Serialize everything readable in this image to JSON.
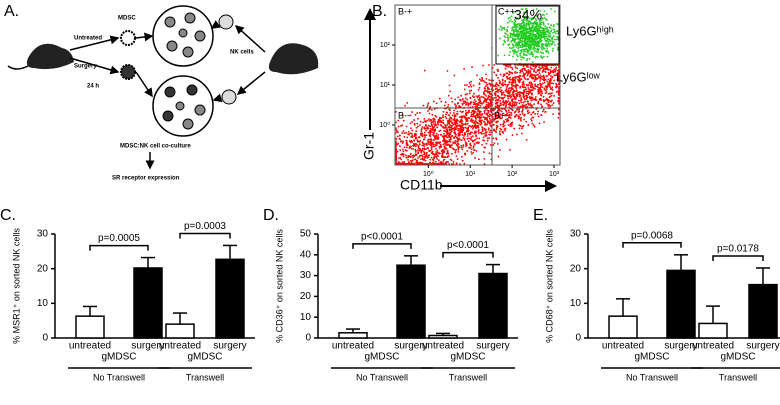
{
  "diagram": {
    "panel_label": "A.",
    "mdsc": "MDSC",
    "untreated": "Untreated",
    "surgery": "Surgery",
    "time": "24 h",
    "nk_cells": "NK cells",
    "coculture": "MDSC:NK cell co-culture",
    "readout": "SR receptor expression"
  },
  "chart_data": [
    {
      "type": "density",
      "panel_label": "B.",
      "xlabel": "CD11b",
      "ylabel": "Gr-1",
      "log": true,
      "xlim": [
        0.16,
        1000
      ],
      "ylim": [
        0.1,
        1000
      ],
      "xticks": [
        {
          "value": 1,
          "label": "10⁰"
        },
        {
          "value": 10,
          "label": "10¹"
        },
        {
          "value": 100,
          "label": "10²"
        },
        {
          "value": 1000,
          "label": "10³"
        }
      ],
      "yticks": [
        {
          "value": 1,
          "label": "10⁰"
        },
        {
          "value": 10,
          "label": "10¹"
        },
        {
          "value": 100,
          "label": "10²"
        }
      ],
      "gates": [
        "B-+",
        "C++",
        "B--",
        "B+-"
      ],
      "gate_percent": "34%",
      "high_label": "Ly6Gʰⁱᵍʰ",
      "low_label": "Ly6Gˡᵒʷ"
    },
    {
      "type": "bar",
      "panel_label": "C.",
      "ylabel": "% MSR1⁺ on sorted NK cells",
      "ylim": [
        0,
        30
      ],
      "yticks": [
        0,
        10,
        20,
        30
      ],
      "categories": [
        "untreated",
        "surgery",
        "untreated",
        "surgery"
      ],
      "values": [
        6.3,
        20.2,
        4,
        22.7
      ],
      "errors": [
        2.8,
        3,
        3.2,
        4
      ],
      "colors": [
        "#ffffff",
        "#000000",
        "#ffffff",
        "#000000"
      ],
      "groups": [
        {
          "sublabel": "gMDSC",
          "label": "No Transwell",
          "annotation": "p=0.0005"
        },
        {
          "sublabel": "gMDSC",
          "label": "Transwell",
          "annotation": "p=0.0003"
        }
      ]
    },
    {
      "type": "bar",
      "panel_label": "D.",
      "ylabel": "% CD36⁺ on sorted NK cells",
      "ylim": [
        0,
        50
      ],
      "yticks": [
        0,
        10,
        20,
        30,
        40,
        50
      ],
      "categories": [
        "untreated",
        "surgery",
        "untreated",
        "surgery"
      ],
      "values": [
        2.5,
        35,
        1.2,
        31
      ],
      "errors": [
        1.8,
        4.5,
        1,
        4.3
      ],
      "colors": [
        "#ffffff",
        "#000000",
        "#ffffff",
        "#000000"
      ],
      "groups": [
        {
          "sublabel": "gMDSC",
          "label": "No Transwell",
          "annotation": "p<0.0001"
        },
        {
          "sublabel": "gMDSC",
          "label": "Transwell",
          "annotation": "p<0.0001"
        }
      ]
    },
    {
      "type": "bar",
      "panel_label": "E.",
      "ylabel": "% CD68⁺ on sorted NK cells",
      "ylim": [
        0,
        30
      ],
      "yticks": [
        0,
        10,
        20,
        30
      ],
      "categories": [
        "untreated",
        "surgery",
        "untreated",
        "surgery"
      ],
      "values": [
        6.3,
        19.5,
        4.2,
        15.4
      ],
      "errors": [
        5,
        4.5,
        5,
        4.8
      ],
      "colors": [
        "#ffffff",
        "#000000",
        "#ffffff",
        "#000000"
      ],
      "groups": [
        {
          "sublabel": "gMDSC",
          "label": "No Transwell",
          "annotation": "p=0.0068"
        },
        {
          "sublabel": "gMDSC",
          "label": "Transwell",
          "annotation": "p=0.0178"
        }
      ]
    }
  ]
}
